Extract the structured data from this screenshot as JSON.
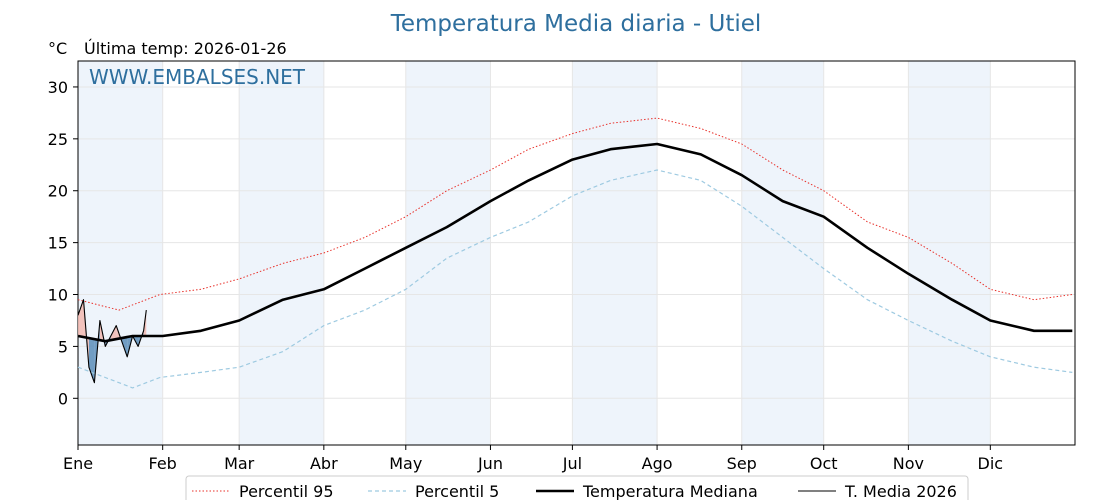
{
  "chart_data": {
    "type": "line",
    "title": "Temperatura Media diaria - Utiel",
    "unit_label": "°C",
    "last_temp_label": "Última temp: 2026-01-26",
    "watermark": "WWW.EMBALSES.NET",
    "ylim": [
      -4.5,
      32.5
    ],
    "xlim": [
      0,
      365
    ],
    "yticks": [
      0,
      5,
      10,
      15,
      20,
      25,
      30
    ],
    "months": [
      "Ene",
      "Feb",
      "Mar",
      "Abr",
      "May",
      "Jun",
      "Jul",
      "Ago",
      "Sep",
      "Oct",
      "Nov",
      "Dic"
    ],
    "month_starts": [
      0,
      31,
      59,
      90,
      120,
      151,
      181,
      212,
      243,
      273,
      304,
      334
    ],
    "grid": true,
    "legend_position": "bottom-center",
    "series": [
      {
        "name": "Percentil 95",
        "color": "#e8302a",
        "style": "dotted",
        "x": [
          0,
          15,
          30,
          45,
          59,
          75,
          90,
          105,
          120,
          135,
          151,
          165,
          181,
          195,
          212,
          228,
          243,
          258,
          273,
          289,
          304,
          320,
          334,
          350,
          364
        ],
        "values": [
          9.5,
          8.5,
          10.0,
          10.5,
          11.5,
          13.0,
          14.0,
          15.5,
          17.5,
          20.0,
          22.0,
          24.0,
          25.5,
          26.5,
          27.0,
          26.0,
          24.5,
          22.0,
          20.0,
          17.0,
          15.5,
          13.0,
          10.5,
          9.5,
          10.0
        ]
      },
      {
        "name": "Percentil 5",
        "color": "#9ecae1",
        "style": "dashed",
        "x": [
          0,
          10,
          20,
          30,
          45,
          59,
          75,
          90,
          105,
          120,
          135,
          151,
          165,
          181,
          195,
          212,
          228,
          243,
          258,
          273,
          289,
          304,
          320,
          334,
          350,
          364
        ],
        "values": [
          3.0,
          2.0,
          1.0,
          2.0,
          2.5,
          3.0,
          4.5,
          7.0,
          8.5,
          10.5,
          13.5,
          15.5,
          17.0,
          19.5,
          21.0,
          22.0,
          21.0,
          18.5,
          15.5,
          12.5,
          9.5,
          7.5,
          5.5,
          4.0,
          3.0,
          2.5
        ]
      },
      {
        "name": "Temperatura Mediana",
        "color": "#000000",
        "style": "solid-thick",
        "x": [
          0,
          10,
          20,
          31,
          45,
          59,
          75,
          90,
          105,
          120,
          135,
          151,
          165,
          181,
          195,
          212,
          228,
          243,
          258,
          273,
          289,
          304,
          320,
          334,
          350,
          364
        ],
        "values": [
          6.0,
          5.5,
          6.0,
          6.0,
          6.5,
          7.5,
          9.5,
          10.5,
          12.5,
          14.5,
          16.5,
          19.0,
          21.0,
          23.0,
          24.0,
          24.5,
          23.5,
          21.5,
          19.0,
          17.5,
          14.5,
          12.0,
          9.5,
          7.5,
          6.5,
          6.5
        ]
      },
      {
        "name": "T. Media 2026",
        "color": "#000000",
        "style": "solid-thin",
        "x": [
          0,
          2,
          4,
          6,
          8,
          10,
          12,
          14,
          16,
          18,
          20,
          22,
          24,
          25
        ],
        "values": [
          8.0,
          9.5,
          3.0,
          1.5,
          7.5,
          5.0,
          6.0,
          7.0,
          5.5,
          4.0,
          6.0,
          5.0,
          6.5,
          8.5
        ]
      }
    ]
  }
}
